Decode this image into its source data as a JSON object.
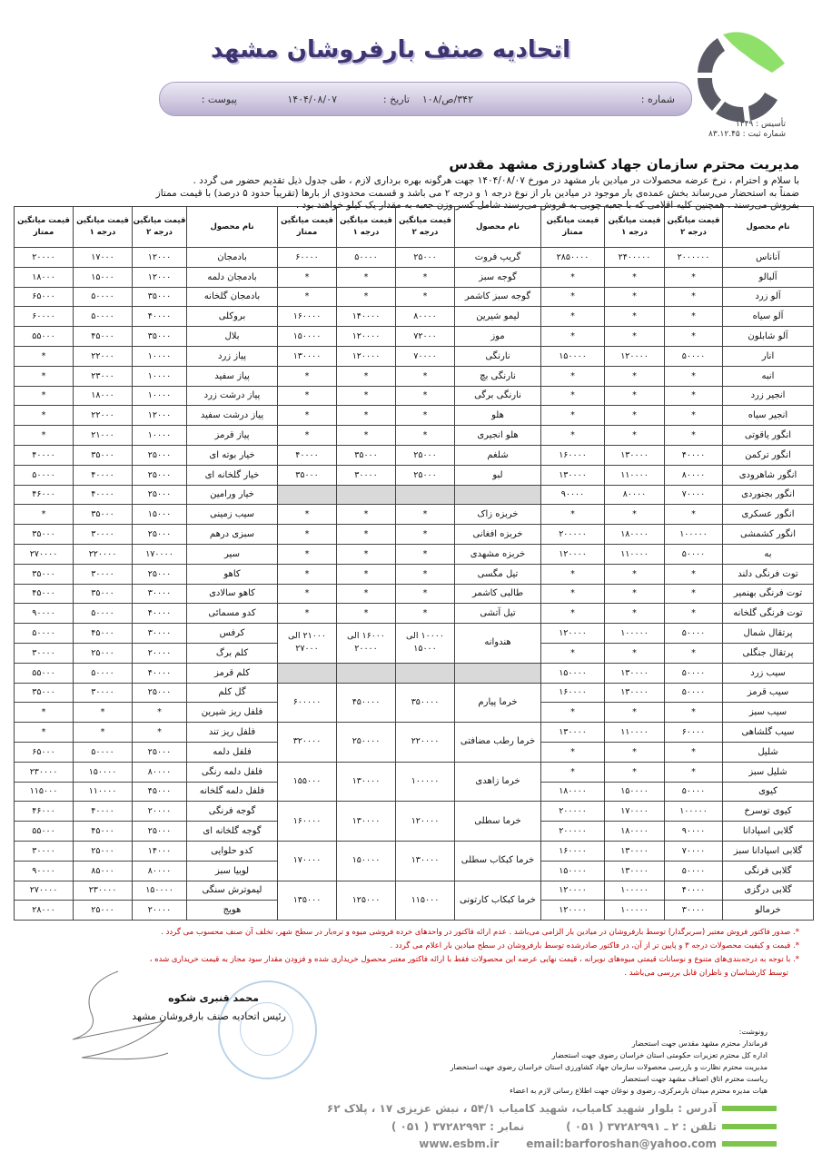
{
  "header": {
    "title": "اتحادیه صنف بارفروشان مشهد",
    "number_label": "شماره :",
    "number": "۳۴۲/ص/۱۰۸",
    "date_label": "تاریخ :",
    "date": "۱۴۰۴/۰۸/۰۷",
    "attachment_label": "پیوست :",
    "founded": "تأسیس : ۱۳۴۹",
    "reg": "شماره ثبت : ۸۳.۱۲.۴۵"
  },
  "heading": "مدیریت محترم سازمان جهاد کشاورزی مشهد مقدس",
  "intro": [
    "با سلام و احترام ، نرخ عرضه محصولات در میادین بار مشهد در مورخ ۱۴۰۴/۰۸/۰۷ جهت هرگونه بهره برداری لازم ، طی جدول ذیل تقدیم حضور می گردد .",
    "ضمناً به استحضار می‌رساند بخش عمده‌ی بار موجود در میادین بار از نوع درجه ۱ و درجه ۲ می باشد و قسمت محدودی از بارها (تقریباً حدود ۵ درصد) با قیمت ممتاز",
    "بفروش می‌رسند . همچنین کلیه اقلامی که با جعبه چوبی به فروش می‌رسند شامل کسر وزن جعبه به مقدار یک کیلو خواهند بود ."
  ],
  "table": {
    "headers": {
      "name": "نام محصول",
      "deg2": "قیمت میانگین درجه ۲",
      "deg1": "قیمت میانگین درجه ۱",
      "momtaz": "قیمت میانگین ممتاز"
    },
    "fruits": [
      [
        "آناناس",
        "۲۰۰۰۰۰۰",
        "۲۴۰۰۰۰۰",
        "۲۸۵۰۰۰۰"
      ],
      [
        "آلبالو",
        "*",
        "*",
        "*"
      ],
      [
        "آلو زرد",
        "*",
        "*",
        "*"
      ],
      [
        "آلو سیاه",
        "*",
        "*",
        "*"
      ],
      [
        "آلو شابلون",
        "*",
        "*",
        "*"
      ],
      [
        "انار",
        "۵۰۰۰۰",
        "۱۲۰۰۰۰",
        "۱۵۰۰۰۰"
      ],
      [
        "انبه",
        "*",
        "*",
        "*"
      ],
      [
        "انجیر زرد",
        "*",
        "*",
        "*"
      ],
      [
        "انجیر سیاه",
        "*",
        "*",
        "*"
      ],
      [
        "انگور یاقوتی",
        "*",
        "*",
        "*"
      ],
      [
        "انگور ترکمن",
        "۴۰۰۰۰",
        "۱۳۰۰۰۰",
        "۱۶۰۰۰۰"
      ],
      [
        "انگور شاهرودی",
        "۸۰۰۰۰",
        "۱۱۰۰۰۰",
        "۱۳۰۰۰۰"
      ],
      [
        "انگور بجنوردی",
        "۷۰۰۰۰",
        "۸۰۰۰۰",
        "۹۰۰۰۰"
      ],
      [
        "انگور عسکری",
        "*",
        "*",
        "*"
      ],
      [
        "انگور کشمشی",
        "۱۰۰۰۰۰",
        "۱۸۰۰۰۰",
        "۲۰۰۰۰۰"
      ],
      [
        "به",
        "۵۰۰۰۰",
        "۱۱۰۰۰۰",
        "۱۲۰۰۰۰"
      ],
      [
        "توت فرنگی دلند",
        "*",
        "*",
        "*"
      ],
      [
        "توت فرنگی بهنمیر",
        "*",
        "*",
        "*"
      ],
      [
        "توت فرنگی گلخانه",
        "*",
        "*",
        "*"
      ],
      [
        "پرتقال شمال",
        "۵۰۰۰۰",
        "۱۰۰۰۰۰",
        "۱۲۰۰۰۰"
      ],
      [
        "پرتقال جنگلی",
        "*",
        "*",
        "*"
      ],
      [
        "سیب زرد",
        "۵۰۰۰۰",
        "۱۳۰۰۰۰",
        "۱۵۰۰۰۰"
      ],
      [
        "سیب قرمز",
        "۵۰۰۰۰",
        "۱۳۰۰۰۰",
        "۱۶۰۰۰۰"
      ],
      [
        "سیب سبز",
        "*",
        "*",
        "*"
      ],
      [
        "سیب گلشاهی",
        "۶۰۰۰۰",
        "۱۱۰۰۰۰",
        "۱۳۰۰۰۰"
      ],
      [
        "شلیل",
        "*",
        "*",
        "*"
      ],
      [
        "شلیل سبز",
        "*",
        "*",
        "*"
      ],
      [
        "کیوی",
        "۵۰۰۰۰",
        "۱۵۰۰۰۰",
        "۱۸۰۰۰۰"
      ],
      [
        "کیوی توسرخ",
        "۱۰۰۰۰۰",
        "۱۷۰۰۰۰",
        "۲۰۰۰۰۰"
      ],
      [
        "گلابی اسپادانا",
        "۹۰۰۰۰",
        "۱۸۰۰۰۰",
        "۲۰۰۰۰۰"
      ],
      [
        "گلابی اسپادانا سبز",
        "۷۰۰۰۰",
        "۱۳۰۰۰۰",
        "۱۶۰۰۰۰"
      ],
      [
        "گلابی فرنگی",
        "۵۰۰۰۰",
        "۱۳۰۰۰۰",
        "۱۵۰۰۰۰"
      ],
      [
        "گلابی درگزی",
        "۴۰۰۰۰",
        "۱۰۰۰۰۰",
        "۱۲۰۰۰۰"
      ],
      [
        "خرمالو",
        "۳۰۰۰۰",
        "۱۰۰۰۰۰",
        "۱۲۰۰۰۰"
      ]
    ],
    "middle": [
      {
        "v": [
          "گریپ فروت",
          "۲۵۰۰۰",
          "۵۰۰۰۰",
          "۶۰۰۰۰"
        ]
      },
      {
        "v": [
          "گوجه سبز",
          "*",
          "*",
          "*"
        ]
      },
      {
        "v": [
          "گوجه سبز کاشمر",
          "*",
          "*",
          "*"
        ]
      },
      {
        "v": [
          "لیمو شیرین",
          "۸۰۰۰۰",
          "۱۴۰۰۰۰",
          "۱۶۰۰۰۰"
        ]
      },
      {
        "v": [
          "موز",
          "۷۲۰۰۰",
          "۱۲۰۰۰۰",
          "۱۵۰۰۰۰"
        ]
      },
      {
        "v": [
          "نارنگی",
          "۷۰۰۰۰",
          "۱۲۰۰۰۰",
          "۱۳۰۰۰۰"
        ]
      },
      {
        "v": [
          "نارنگی بچ",
          "*",
          "*",
          "*"
        ]
      },
      {
        "v": [
          "نارنگی برگی",
          "*",
          "*",
          "*"
        ]
      },
      {
        "v": [
          "هلو",
          "*",
          "*",
          "*"
        ]
      },
      {
        "v": [
          "هلو انجیری",
          "*",
          "*",
          "*"
        ]
      },
      {
        "v": [
          "شلغم",
          "۲۵۰۰۰",
          "۳۵۰۰۰",
          "۴۰۰۰۰"
        ]
      },
      {
        "v": [
          "لبو",
          "۲۵۰۰۰",
          "۳۰۰۰۰",
          "۳۵۰۰۰"
        ]
      },
      {
        "empty": true
      },
      {
        "v": [
          "خربزه زاک",
          "*",
          "*",
          "*"
        ]
      },
      {
        "v": [
          "خربزه افغانی",
          "*",
          "*",
          "*"
        ]
      },
      {
        "v": [
          "خربزه مشهدی",
          "*",
          "*",
          "*"
        ]
      },
      {
        "v": [
          "تیل مگسی",
          "*",
          "*",
          "*"
        ]
      },
      {
        "v": [
          "طالبی کاشمر",
          "*",
          "*",
          "*"
        ]
      },
      {
        "v": [
          "تیل آتشی",
          "*",
          "*",
          "*"
        ]
      },
      {
        "v": [
          "هندوانه",
          "۱۰۰۰۰ الی ۱۵۰۰۰",
          "۱۶۰۰۰ الی ۲۰۰۰۰",
          "۲۱۰۰۰ الی ۲۷۰۰۰"
        ],
        "span": 2
      },
      {
        "empty": true
      },
      {
        "v": [
          "خرما پیارم",
          "۳۵۰۰۰۰",
          "۴۵۰۰۰۰",
          "۶۰۰۰۰۰"
        ],
        "span": 2
      },
      {
        "v": [
          "خرما رطب مضافتی",
          "۲۲۰۰۰۰",
          "۲۵۰۰۰۰",
          "۳۲۰۰۰۰"
        ],
        "span": 2
      },
      {
        "v": [
          "خرما زاهدی",
          "۱۰۰۰۰۰",
          "۱۳۰۰۰۰",
          "۱۵۵۰۰۰"
        ],
        "span": 2
      },
      {
        "v": [
          "خرما سطلی",
          "۱۲۰۰۰۰",
          "۱۳۰۰۰۰",
          "۱۶۰۰۰۰"
        ],
        "span": 2
      },
      {
        "v": [
          "خرما کبکاب سطلی",
          "۱۳۰۰۰۰",
          "۱۵۰۰۰۰",
          "۱۷۰۰۰۰"
        ],
        "span": 2
      },
      {
        "v": [
          "خرما کبکاب کارتونی",
          "۱۱۵۰۰۰",
          "۱۲۵۰۰۰",
          "۱۳۵۰۰۰"
        ],
        "span": 2
      }
    ],
    "vegetables": [
      [
        "بادمجان",
        "۱۲۰۰۰",
        "۱۷۰۰۰",
        "۲۰۰۰۰"
      ],
      [
        "بادمجان دلمه",
        "۱۲۰۰۰",
        "۱۵۰۰۰",
        "۱۸۰۰۰"
      ],
      [
        "بادمجان گلخانه",
        "۳۵۰۰۰",
        "۵۰۰۰۰",
        "۶۵۰۰۰"
      ],
      [
        "بروکلی",
        "۴۰۰۰۰",
        "۵۰۰۰۰",
        "۶۰۰۰۰"
      ],
      [
        "بلال",
        "۳۵۰۰۰",
        "۴۵۰۰۰",
        "۵۵۰۰۰"
      ],
      [
        "پیاز زرد",
        "۱۰۰۰۰",
        "۲۲۰۰۰",
        "*"
      ],
      [
        "پیاز سفید",
        "۱۰۰۰۰",
        "۲۳۰۰۰",
        "*"
      ],
      [
        "پیاز درشت زرد",
        "۱۰۰۰۰",
        "۱۸۰۰۰",
        "*"
      ],
      [
        "پیاز درشت سفید",
        "۱۲۰۰۰",
        "۲۲۰۰۰",
        "*"
      ],
      [
        "پیاز قرمز",
        "۱۰۰۰۰",
        "۲۱۰۰۰",
        "*"
      ],
      [
        "خیار بوته ای",
        "۲۵۰۰۰",
        "۳۵۰۰۰",
        "۴۰۰۰۰"
      ],
      [
        "خیار گلخانه ای",
        "۲۵۰۰۰",
        "۴۰۰۰۰",
        "۵۰۰۰۰"
      ],
      [
        "خیار ورامین",
        "۲۵۰۰۰",
        "۴۰۰۰۰",
        "۴۶۰۰۰"
      ],
      [
        "سیب زمینی",
        "۱۵۰۰۰",
        "۳۵۰۰۰",
        "*"
      ],
      [
        "سبزی درهم",
        "۲۵۰۰۰",
        "۳۰۰۰۰",
        "۳۵۰۰۰"
      ],
      [
        "سیر",
        "۱۷۰۰۰۰",
        "۲۲۰۰۰۰",
        "۲۷۰۰۰۰"
      ],
      [
        "کاهو",
        "۲۵۰۰۰",
        "۳۰۰۰۰",
        "۳۵۰۰۰"
      ],
      [
        "کاهو سالادی",
        "۳۰۰۰۰",
        "۳۵۰۰۰",
        "۴۵۰۰۰"
      ],
      [
        "کدو مسمائی",
        "۴۰۰۰۰",
        "۵۰۰۰۰",
        "۹۰۰۰۰"
      ],
      [
        "کرفس",
        "۳۰۰۰۰",
        "۴۵۰۰۰",
        "۵۰۰۰۰"
      ],
      [
        "کلم برگ",
        "۲۰۰۰۰",
        "۲۵۰۰۰",
        "۳۰۰۰۰"
      ],
      [
        "کلم قرمز",
        "۴۰۰۰۰",
        "۵۰۰۰۰",
        "۵۵۰۰۰"
      ],
      [
        "گل کلم",
        "۲۵۰۰۰",
        "۳۰۰۰۰",
        "۳۵۰۰۰"
      ],
      [
        "فلفل ریز شیرین",
        "*",
        "*",
        "*"
      ],
      [
        "فلفل ریز تند",
        "*",
        "*",
        "*"
      ],
      [
        "فلفل دلمه",
        "۲۵۰۰۰",
        "۵۰۰۰۰",
        "۶۵۰۰۰"
      ],
      [
        "فلفل دلمه رنگی",
        "۸۰۰۰۰",
        "۱۵۰۰۰۰",
        "۲۳۰۰۰۰"
      ],
      [
        "فلفل دلمه گلخانه",
        "۴۵۰۰۰",
        "۱۱۰۰۰۰",
        "۱۱۵۰۰۰"
      ],
      [
        "گوجه فرنگی",
        "۲۰۰۰۰",
        "۴۰۰۰۰",
        "۴۶۰۰۰"
      ],
      [
        "گوجه گلخانه ای",
        "۲۵۰۰۰",
        "۴۵۰۰۰",
        "۵۵۰۰۰"
      ],
      [
        "کدو حلوایی",
        "۱۴۰۰۰",
        "۲۵۰۰۰",
        "۳۰۰۰۰"
      ],
      [
        "لوبیا سبز",
        "۸۰۰۰۰",
        "۸۵۰۰۰",
        "۹۰۰۰۰"
      ],
      [
        "لیموترش سنگی",
        "۱۵۰۰۰۰",
        "۲۳۰۰۰۰",
        "۲۷۰۰۰۰"
      ],
      [
        "هویج",
        "۲۰۰۰۰",
        "۲۵۰۰۰",
        "۲۸۰۰۰"
      ]
    ]
  },
  "notes": [
    "*. صدور فاکتور فروش معتبر (سربرگدار) توسط بارفروشان در میادین بار الزامی می‌باشد . عدم ارائه فاکتور در واحدهای خرده فروشی میوه و تره‌بار در سطح شهر، تخلف آن صنف محسوب می گردد .",
    "*. قیمت و کیفیت محصولات درجه ۳ و پایین تر از آن، در فاکتور صادرشده توسط بارفروشان در سطح میادین بار اعلام می گردد .",
    "*. با توجه به درجه‌بندی‌های متنوع و نوسانات قیمتی میوه‌های نوبرانه ، قیمت نهایی عرضه این محصولات فقط با ارائه فاکتور معتبر محصول خریداری شده و فزودن مقدار سود مجاز به قیمت خریداری شده ،",
    "توسط کارشناسان و ناظران قابل بررسی می‌باشد ."
  ],
  "signature": {
    "name": "محمد قنبری شکوه",
    "title": "رئیس اتحادیه صنف بارفروشان مشهد"
  },
  "cc": {
    "label": "رونوشت:",
    "items": [
      "فرماندار محترم مشهد مقدس جهت استحضار",
      "اداره کل محترم تعزیرات حکومتی استان خراسان رضوی جهت استحضار",
      "مدیریت محترم نظارت و بازرسی محصولات سازمان جهاد کشاورزی استان خراسان رضوی جهت استحضار",
      "ریاست محترم اتاق اصناف مشهد جهت استحضار",
      "هیات مدیره محترم میدان بارمرکزی، رضوی و نوغان جهت اطلاع رسانی لازم به اعضاء"
    ]
  },
  "footer": {
    "address": "آدرس : بلوار شهید کامیاب، شهید کامیاب ۵۴/۱ ، نبش عزیزی ۱۷ ، پلاک ۶۲",
    "phone": "تلفن : ۲ ـ ۳۷۲۸۲۹۹۱ ( ۰۵۱ )",
    "fax": "نمابر : ۳۷۲۸۲۹۹۳ ( ۰۵۱ )",
    "email": "email:barforoshan@yahoo.com",
    "website": "www.esbm.ir"
  },
  "colors": {
    "title": "#3d3470",
    "logo_green": "#8ee06a",
    "logo_gray": "#5a5a66",
    "notes": "#c00000",
    "footer_bar": "#7cc44a"
  }
}
